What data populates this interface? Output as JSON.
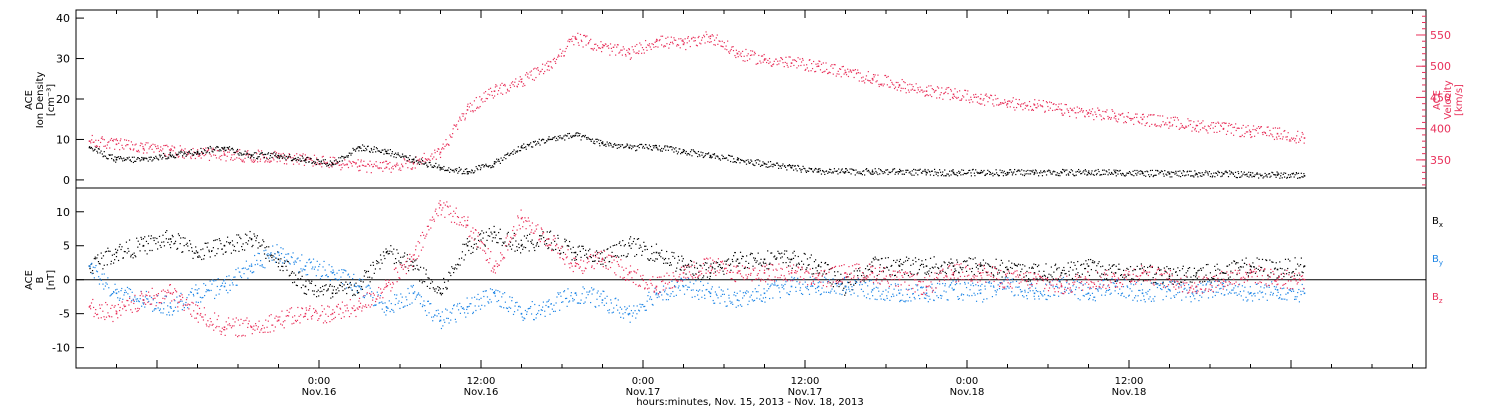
{
  "chart_data": [
    {
      "type": "scatter",
      "panel": "top",
      "ylabel_left": [
        "ACE",
        "Ion Density",
        "[cm⁻³]"
      ],
      "ylabel_right": [
        "ACE",
        "Velocity",
        "[km/s]"
      ],
      "ylim_left": [
        -2,
        42
      ],
      "yticks_left": [
        0,
        10,
        20,
        30,
        40
      ],
      "ylim_right": [
        305,
        590
      ],
      "yticks_right": [
        350,
        400,
        450,
        500,
        550
      ],
      "grid": false,
      "colors": {
        "density": "#000000",
        "velocity": "#e8305a"
      },
      "series": [
        {
          "key": "density",
          "axis": "left",
          "x": [
            -17,
            -15,
            -13,
            -11,
            -9,
            -7,
            -5,
            -3,
            -1,
            1,
            3,
            5,
            7,
            9,
            11,
            13,
            15,
            17,
            19,
            21,
            23,
            25,
            27,
            29,
            31,
            33,
            35,
            37,
            39,
            41,
            43,
            45,
            47,
            49,
            51,
            53,
            55,
            57,
            59,
            61,
            63,
            65,
            67,
            69,
            71,
            73
          ],
          "values": [
            8,
            5,
            5,
            6,
            7,
            8,
            6,
            6,
            5,
            4,
            8,
            7,
            5,
            3,
            2,
            4,
            8,
            10,
            11,
            9,
            8,
            8,
            7,
            6,
            5,
            4,
            3,
            2,
            2,
            2,
            2,
            1.8,
            1.8,
            1.8,
            1.8,
            1.8,
            1.8,
            1.8,
            1.8,
            1.6,
            1.5,
            1.5,
            1.5,
            1.2,
            1.2,
            1
          ]
        },
        {
          "key": "velocity",
          "axis": "right",
          "x": [
            -17,
            -15,
            -13,
            -11,
            -9,
            -7,
            -5,
            -3,
            -1,
            1,
            3,
            5,
            7,
            9,
            11,
            13,
            15,
            17,
            19,
            21,
            23,
            25,
            27,
            29,
            31,
            33,
            35,
            37,
            39,
            41,
            43,
            45,
            47,
            49,
            51,
            53,
            55,
            57,
            59,
            61,
            63,
            65,
            67,
            69,
            71,
            73
          ],
          "values": [
            380,
            375,
            368,
            365,
            360,
            358,
            356,
            355,
            350,
            345,
            340,
            338,
            345,
            362,
            430,
            460,
            475,
            500,
            545,
            530,
            520,
            540,
            535,
            548,
            520,
            510,
            505,
            500,
            490,
            480,
            470,
            460,
            455,
            448,
            440,
            438,
            430,
            425,
            420,
            415,
            410,
            405,
            400,
            395,
            392,
            385
          ]
        }
      ]
    },
    {
      "type": "scatter",
      "panel": "bottom",
      "ylabel_left": [
        "ACE",
        "B",
        "[nT]"
      ],
      "ylim": [
        -13,
        13.5
      ],
      "yticks": [
        -10,
        -5,
        0,
        5,
        10
      ],
      "zero_line": true,
      "legend_position": "right",
      "grid": false,
      "series": [
        {
          "name": "Bx",
          "legend_main": "B",
          "legend_sub": "x",
          "color": "#000000",
          "x": [
            -17,
            -15,
            -13,
            -11,
            -9,
            -7,
            -5,
            -3,
            -1,
            1,
            3,
            5,
            7,
            9,
            11,
            13,
            15,
            17,
            19,
            21,
            23,
            25,
            27,
            29,
            31,
            33,
            35,
            37,
            39,
            41,
            43,
            45,
            47,
            49,
            51,
            53,
            55,
            57,
            59,
            61,
            63,
            65,
            67,
            69,
            71,
            73
          ],
          "values": [
            2,
            4,
            5,
            6,
            4,
            5,
            6,
            3,
            -1,
            -2,
            -1,
            4,
            2,
            -2,
            5,
            7,
            5,
            6,
            4,
            3,
            5,
            4,
            2,
            1,
            3,
            3,
            3,
            2,
            -1,
            2,
            2,
            2,
            2,
            2,
            1.5,
            1,
            1,
            2,
            1,
            1,
            0.5,
            1,
            1,
            2,
            1.5,
            2
          ]
        },
        {
          "name": "By",
          "legend_main": "B",
          "legend_sub": "y",
          "color": "#1f86e6",
          "x": [
            -17,
            -15,
            -13,
            -11,
            -9,
            -7,
            -5,
            -3,
            -1,
            1,
            3,
            5,
            7,
            9,
            11,
            13,
            15,
            17,
            19,
            21,
            23,
            25,
            27,
            29,
            31,
            33,
            35,
            37,
            39,
            41,
            43,
            45,
            47,
            49,
            51,
            53,
            55,
            57,
            59,
            61,
            63,
            65,
            67,
            69,
            71,
            73
          ],
          "values": [
            2,
            -2,
            -3,
            -4,
            -2,
            -1,
            2,
            4,
            2,
            1,
            -1,
            -4,
            -2,
            -6,
            -4,
            -2,
            -5,
            -4,
            -2,
            -3,
            -5,
            -2,
            -1,
            -2,
            -3,
            -2,
            -1,
            -1,
            -1,
            -1.5,
            -2,
            -2,
            -1.5,
            -2,
            -1,
            -2,
            -1,
            -2,
            -1,
            -2,
            -1.5,
            -2,
            -1,
            -2,
            -1.5,
            -2
          ]
        },
        {
          "name": "Bz",
          "legend_main": "B",
          "legend_sub": "z",
          "color": "#e8305a",
          "x": [
            -17,
            -15,
            -13,
            -11,
            -9,
            -7,
            -5,
            -3,
            -1,
            1,
            3,
            5,
            7,
            9,
            11,
            13,
            15,
            17,
            19,
            21,
            23,
            25,
            27,
            29,
            31,
            33,
            35,
            37,
            39,
            41,
            43,
            45,
            47,
            49,
            51,
            53,
            55,
            57,
            59,
            61,
            63,
            65,
            67,
            69,
            71,
            73
          ],
          "values": [
            -4,
            -5,
            -3,
            -2,
            -5,
            -7,
            -7,
            -6,
            -5,
            -5,
            -4,
            -1,
            3,
            11,
            8,
            2,
            9,
            6,
            2,
            3,
            1,
            -1,
            1,
            2,
            1,
            1,
            1,
            0,
            1,
            1,
            0,
            -1,
            1,
            1,
            0,
            0,
            -1,
            0,
            0,
            1,
            0,
            -1,
            0,
            1,
            0,
            0
          ]
        }
      ]
    }
  ],
  "xaxis": {
    "xlim": [
      -18,
      82
    ],
    "ticks": [
      {
        "x": 0,
        "time": "0:00",
        "date": "Nov.16"
      },
      {
        "x": 12,
        "time": "12:00",
        "date": "Nov.16"
      },
      {
        "x": 24,
        "time": "0:00",
        "date": "Nov.17"
      },
      {
        "x": 36,
        "time": "12:00",
        "date": "Nov.17"
      },
      {
        "x": 48,
        "time": "0:00",
        "date": "Nov.18"
      },
      {
        "x": 60,
        "time": "12:00",
        "date": "Nov.18"
      }
    ],
    "label": "hours:minutes, Nov. 15, 2013 - Nov. 18, 2013"
  }
}
